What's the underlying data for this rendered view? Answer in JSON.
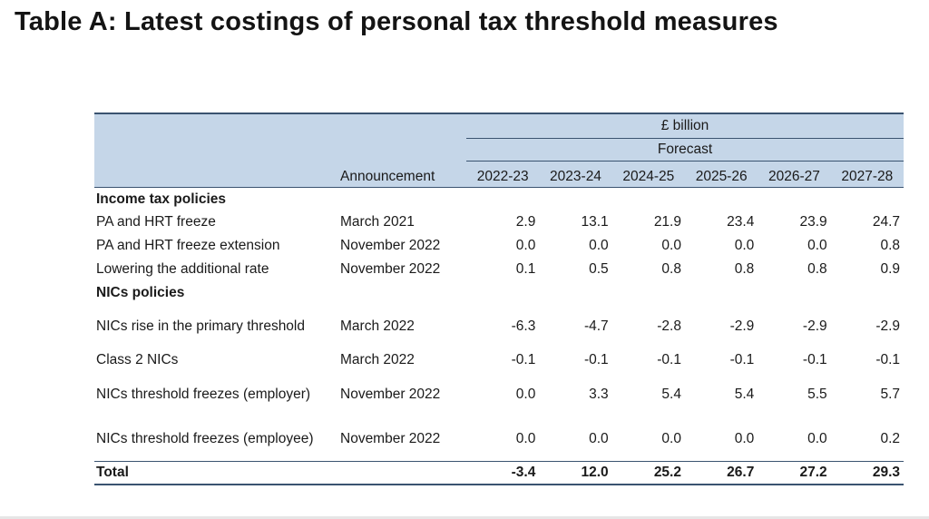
{
  "title": "Table A: Latest costings of personal tax threshold measures",
  "table": {
    "unit": "£ billion",
    "subheader": "Forecast",
    "announcement_header": "Announcement",
    "years": [
      "2022-23",
      "2023-24",
      "2024-25",
      "2025-26",
      "2026-27",
      "2027-28"
    ],
    "sections": [
      {
        "heading": "Income tax policies",
        "rows": [
          {
            "label": "PA and HRT freeze",
            "announcement": "March 2021",
            "values": [
              "2.9",
              "13.1",
              "21.9",
              "23.4",
              "23.9",
              "24.7"
            ]
          },
          {
            "label": "PA and HRT freeze extension",
            "announcement": "November 2022",
            "values": [
              "0.0",
              "0.0",
              "0.0",
              "0.0",
              "0.0",
              "0.8"
            ]
          },
          {
            "label": "Lowering the additional rate",
            "announcement": "November 2022",
            "values": [
              "0.1",
              "0.5",
              "0.8",
              "0.8",
              "0.8",
              "0.9"
            ]
          }
        ]
      },
      {
        "heading": "NICs policies",
        "rows": [
          {
            "label": "NICs rise in the primary threshold",
            "announcement": "March 2022",
            "values": [
              "-6.3",
              "-4.7",
              "-2.8",
              "-2.9",
              "-2.9",
              "-2.9"
            ]
          },
          {
            "label": "Class 2 NICs",
            "announcement": "March 2022",
            "values": [
              "-0.1",
              "-0.1",
              "-0.1",
              "-0.1",
              "-0.1",
              "-0.1"
            ]
          },
          {
            "label": "NICs threshold freezes (employer)",
            "announcement": "November 2022",
            "values": [
              "0.0",
              "3.3",
              "5.4",
              "5.4",
              "5.5",
              "5.7"
            ]
          },
          {
            "label": "NICs threshold freezes (employee)",
            "announcement": "November 2022",
            "values": [
              "0.0",
              "0.0",
              "0.0",
              "0.0",
              "0.0",
              "0.2"
            ]
          }
        ]
      }
    ],
    "total": {
      "label": "Total",
      "values": [
        "-3.4",
        "12.0",
        "25.2",
        "26.7",
        "27.2",
        "29.3"
      ]
    }
  }
}
